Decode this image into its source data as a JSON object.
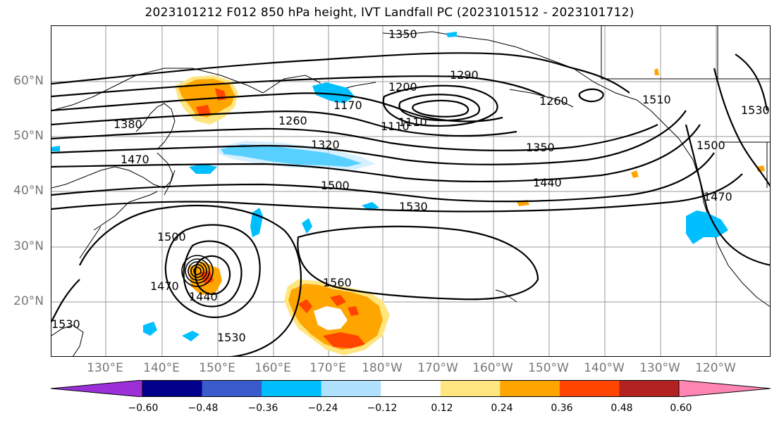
{
  "title": "2023101212 F012 850 hPa height, IVT Landfall PC (2023101512 - 2023101712)",
  "latitude_labels": [
    "60°N",
    "50°N",
    "40°N",
    "30°N",
    "20°N"
  ],
  "longitude_labels": [
    "130°E",
    "140°E",
    "150°E",
    "160°E",
    "170°E",
    "180°W",
    "170°W",
    "160°W",
    "150°W",
    "140°W",
    "130°W",
    "120°W"
  ],
  "contour_labels": [
    "1350",
    "1290",
    "1200",
    "1170",
    "1110",
    "1110",
    "1260",
    "1320",
    "1380",
    "1470",
    "1260",
    "1350",
    "1440",
    "1500",
    "1530",
    "1470",
    "1500",
    "1530",
    "1500",
    "1470",
    "1440",
    "1560",
    "1530",
    "1530",
    "1510"
  ],
  "colorbar": {
    "ticks": [
      "−0.60",
      "−0.48",
      "−0.36",
      "−0.24",
      "−0.12",
      "0.12",
      "0.24",
      "0.36",
      "0.48",
      "0.60"
    ],
    "colors": [
      "#9b30d9",
      "#00008b",
      "#3a5bcc",
      "#00bfff",
      "#b0e2ff",
      "#ffffff",
      "#ffe680",
      "#ffa500",
      "#ff4500",
      "#b22222",
      "#ff85b3"
    ]
  },
  "field_colors": {
    "negative_light": "#00bfff",
    "negative_faint": "#b0e2ff",
    "positive_light": "#ffe680",
    "positive_mid": "#ffa500",
    "positive_strong": "#ff4500"
  }
}
